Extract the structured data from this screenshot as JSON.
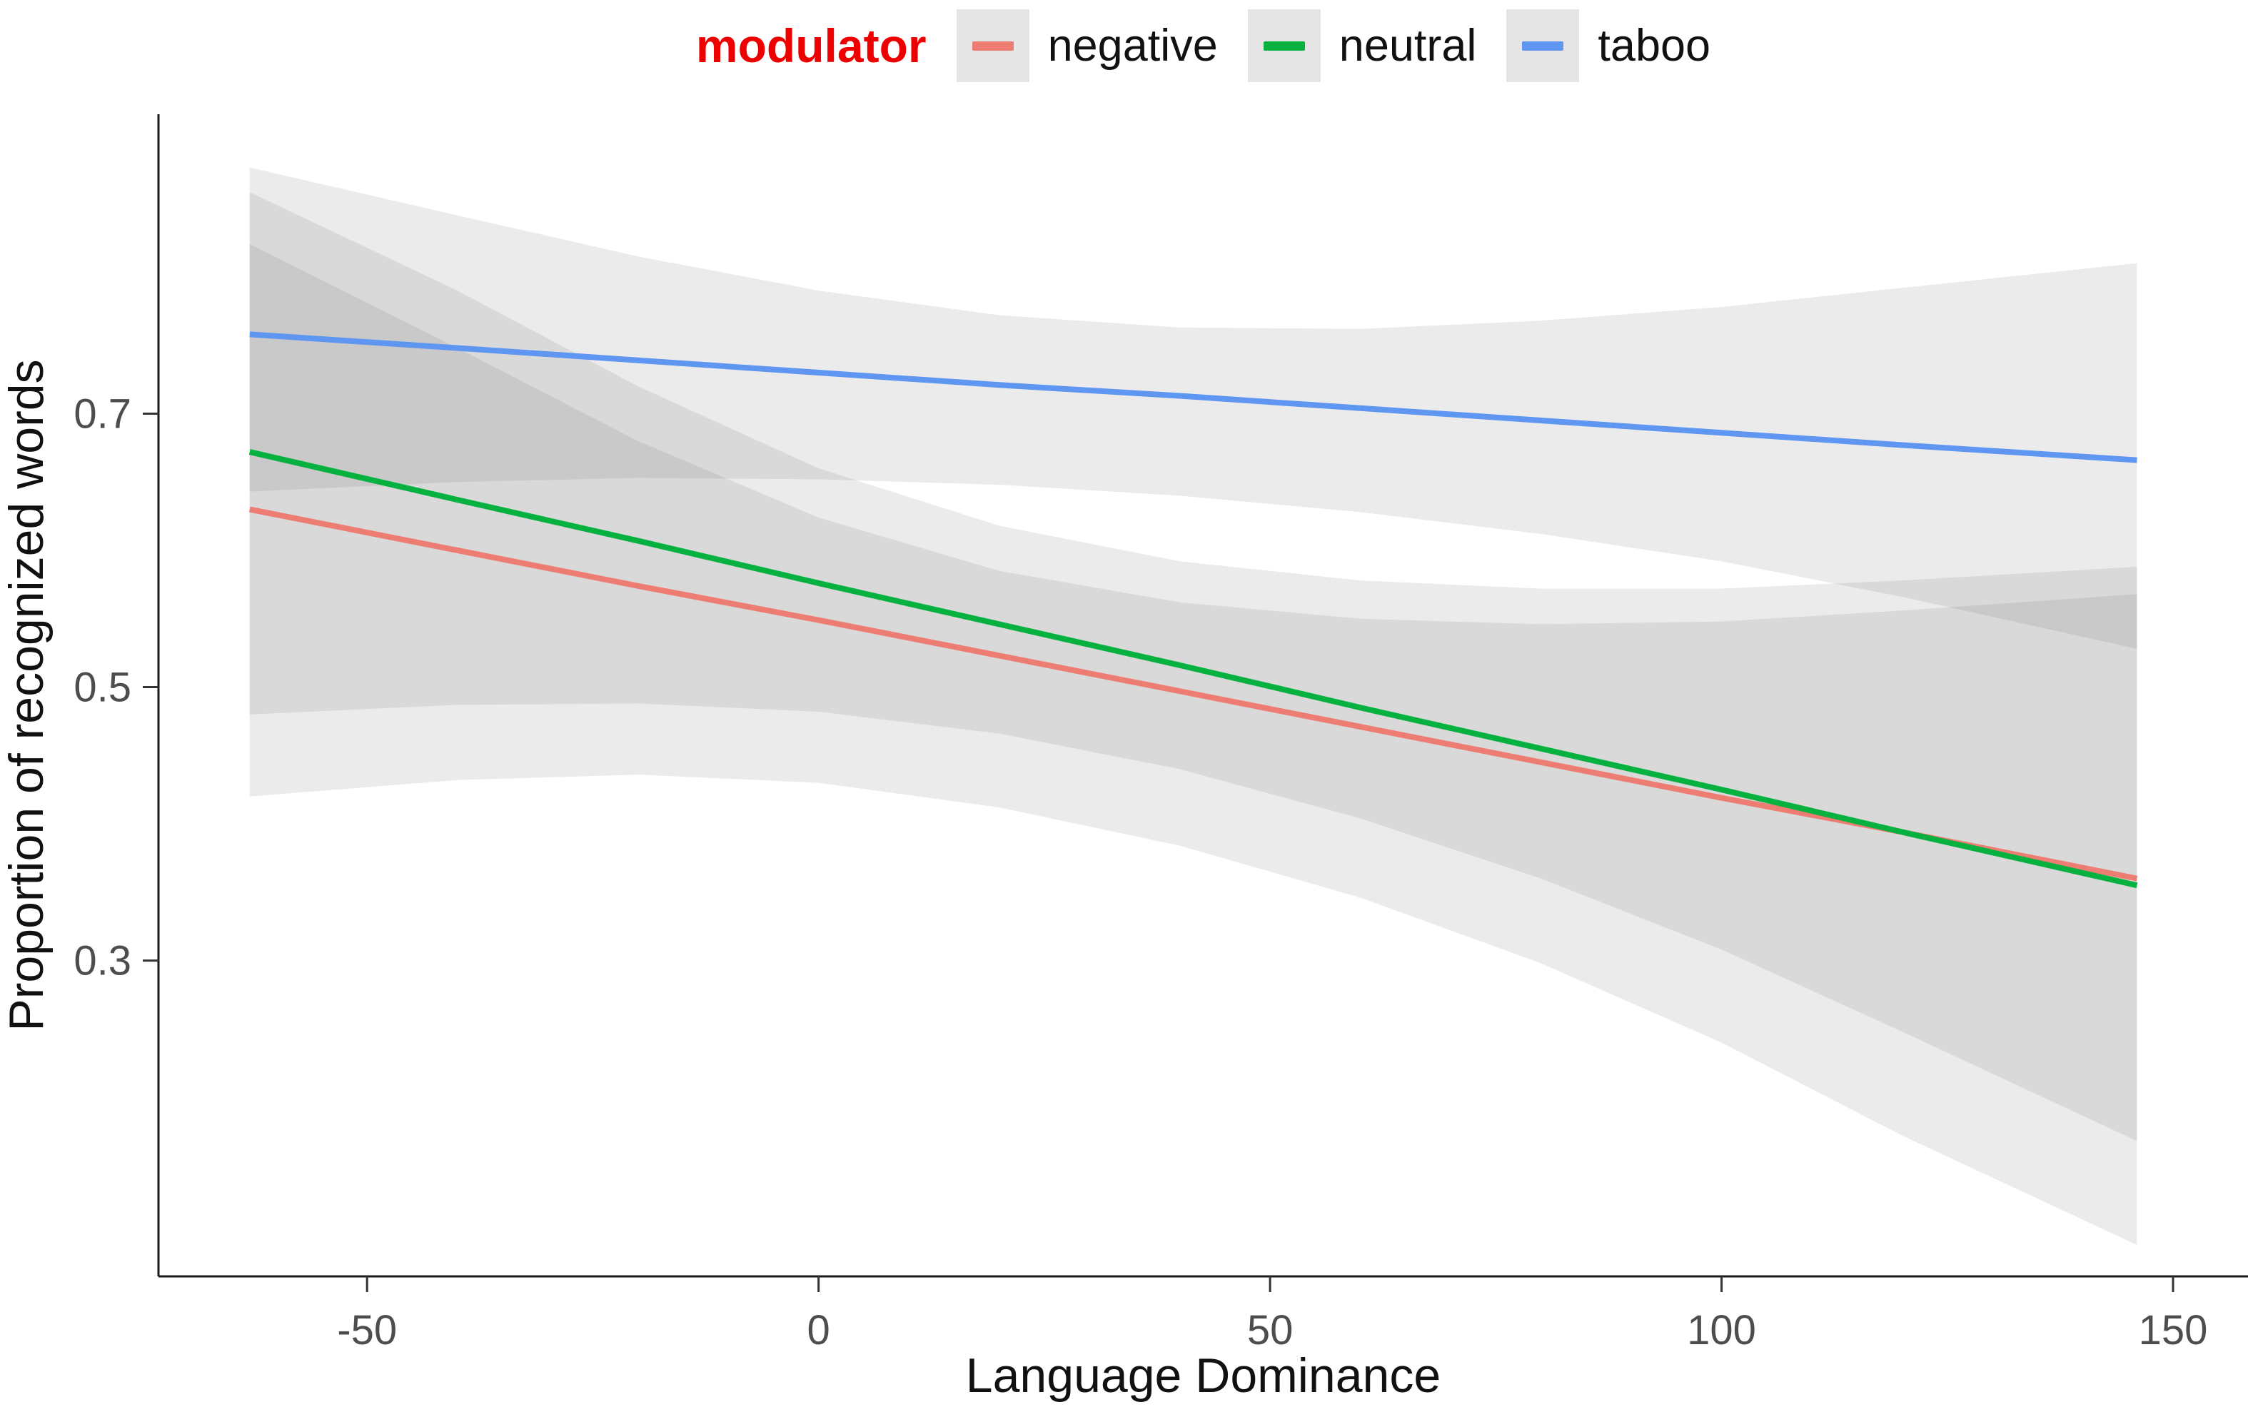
{
  "figure": {
    "legend": {
      "title": "modulator",
      "title_color": "#ee0000",
      "key_bg": "#e5e5e5",
      "items": [
        {
          "label": "negative",
          "color": "#ed7d72"
        },
        {
          "label": "neutral",
          "color": "#06b13f"
        },
        {
          "label": "taboo",
          "color": "#5e96f2"
        }
      ]
    },
    "xlabel": "Language Dominance",
    "ylabel": "Proportion of recognized words"
  },
  "chart_data": {
    "type": "line",
    "title": "",
    "xlabel": "Language Dominance",
    "ylabel": "Proportion of recognized words",
    "legend": {
      "title": "modulator",
      "position": "top",
      "entries": [
        "negative",
        "neutral",
        "taboo"
      ]
    },
    "grid": false,
    "x_axis": {
      "ticks": [
        -50,
        0,
        50,
        100,
        150
      ],
      "range": [
        -73.1,
        158.3
      ]
    },
    "y_axis": {
      "ticks": [
        0.3,
        0.5,
        0.7
      ],
      "range": [
        0.069,
        0.919
      ]
    },
    "x": [
      -63,
      -40,
      -20,
      0,
      20,
      40,
      60,
      80,
      100,
      120,
      146
    ],
    "series": [
      {
        "name": "negative",
        "color": "#ed7d72",
        "line": [
          0.63,
          0.6,
          0.574,
          0.549,
          0.523,
          0.497,
          0.471,
          0.445,
          0.419,
          0.394,
          0.36
        ],
        "ci_upper": [
          0.824,
          0.748,
          0.68,
          0.624,
          0.585,
          0.562,
          0.55,
          0.546,
          0.548,
          0.556,
          0.568
        ],
        "ci_lower": [
          0.42,
          0.432,
          0.436,
          0.43,
          0.412,
          0.384,
          0.346,
          0.298,
          0.24,
          0.172,
          0.092
        ]
      },
      {
        "name": "neutral",
        "color": "#06b13f",
        "line": [
          0.672,
          0.637,
          0.607,
          0.576,
          0.546,
          0.516,
          0.485,
          0.455,
          0.425,
          0.394,
          0.355
        ],
        "ci_upper": [
          0.862,
          0.79,
          0.72,
          0.66,
          0.618,
          0.592,
          0.578,
          0.572,
          0.572,
          0.578,
          0.588
        ],
        "ci_lower": [
          0.48,
          0.487,
          0.488,
          0.482,
          0.466,
          0.44,
          0.404,
          0.36,
          0.308,
          0.248,
          0.168
        ]
      },
      {
        "name": "taboo",
        "color": "#5e96f2",
        "line": [
          0.758,
          0.748,
          0.739,
          0.73,
          0.721,
          0.713,
          0.704,
          0.695,
          0.686,
          0.677,
          0.666
        ],
        "ci_upper": [
          0.88,
          0.845,
          0.815,
          0.79,
          0.772,
          0.763,
          0.762,
          0.768,
          0.778,
          0.792,
          0.81
        ],
        "ci_lower": [
          0.643,
          0.65,
          0.653,
          0.652,
          0.648,
          0.64,
          0.628,
          0.612,
          0.592,
          0.566,
          0.528
        ]
      }
    ],
    "ribbon": {
      "color": "#5a5a5a",
      "opacity": 0.12
    },
    "axis_color": "#1a1a1a",
    "tick_label_color": "#4d4d4d"
  }
}
